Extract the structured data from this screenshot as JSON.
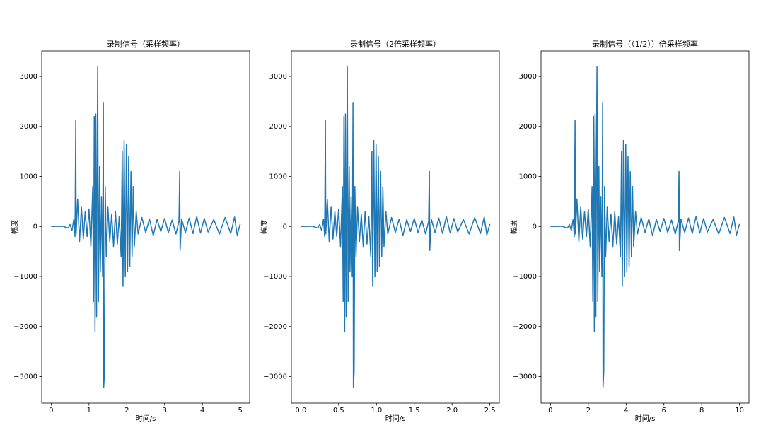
{
  "chart_data": [
    {
      "type": "line",
      "title": "录制信号（采样频率）",
      "x_label": "时间/s",
      "y_label": "幅度",
      "color": "#1f77b4",
      "xlim": [
        -0.25,
        5.25
      ],
      "ylim": [
        -3530,
        3510
      ],
      "xticks": [
        0,
        1,
        2,
        3,
        4,
        5
      ],
      "yticks": [
        {
          "value": -3000,
          "label": "−3000"
        },
        {
          "value": -2000,
          "label": "−2000"
        },
        {
          "value": -1000,
          "label": "−1000"
        },
        0,
        1000,
        2000,
        3000
      ],
      "x": [
        0,
        0.3,
        0.45,
        0.5,
        0.55,
        0.6,
        0.63,
        0.65,
        0.66,
        0.7,
        0.75,
        0.8,
        0.85,
        0.9,
        0.95,
        1.0,
        1.05,
        1.1,
        1.12,
        1.14,
        1.16,
        1.18,
        1.2,
        1.22,
        1.23,
        1.25,
        1.28,
        1.3,
        1.33,
        1.36,
        1.38,
        1.39,
        1.41,
        1.43,
        1.46,
        1.5,
        1.55,
        1.6,
        1.65,
        1.7,
        1.75,
        1.8,
        1.85,
        1.88,
        1.9,
        1.93,
        1.96,
        1.99,
        2.02,
        2.05,
        2.08,
        2.11,
        2.14,
        2.17,
        2.2,
        2.25,
        2.3,
        2.4,
        2.5,
        2.6,
        2.7,
        2.8,
        2.9,
        3.0,
        3.1,
        3.2,
        3.3,
        3.38,
        3.4,
        3.41,
        3.45,
        3.55,
        3.65,
        3.75,
        3.85,
        3.95,
        4.05,
        4.15,
        4.3,
        4.45,
        4.6,
        4.75,
        4.85,
        4.92,
        5.0
      ],
      "values": [
        0,
        5,
        -30,
        40,
        -80,
        150,
        -200,
        2120,
        -150,
        550,
        -300,
        400,
        -250,
        300,
        -200,
        350,
        -400,
        800,
        -1500,
        2200,
        -2100,
        2250,
        -1800,
        1900,
        3190,
        -1500,
        1200,
        -900,
        600,
        -1000,
        2480,
        -3210,
        -2900,
        800,
        -600,
        400,
        -300,
        250,
        -400,
        300,
        -350,
        200,
        -600,
        1500,
        -1200,
        1720,
        -1000,
        1650,
        -900,
        1400,
        -800,
        1100,
        -600,
        800,
        -400,
        300,
        -150,
        180,
        -120,
        150,
        -180,
        140,
        -100,
        160,
        -120,
        130,
        -150,
        100,
        1100,
        -480,
        150,
        -120,
        170,
        -140,
        200,
        -130,
        160,
        -110,
        140,
        -150,
        180,
        -140,
        190,
        -170,
        50
      ]
    },
    {
      "type": "line",
      "title": "录制信号（2倍采样频率）",
      "x_label": "时间/s",
      "y_label": "幅度",
      "color": "#1f77b4",
      "xlim": [
        -0.125,
        2.625
      ],
      "ylim": [
        -3530,
        3510
      ],
      "xticks": [
        {
          "value": 0,
          "label": "0.0"
        },
        0.5,
        {
          "value": 1,
          "label": "1.0"
        },
        1.5,
        {
          "value": 2,
          "label": "2.0"
        },
        2.5
      ],
      "yticks": [
        {
          "value": -3000,
          "label": "−3000"
        },
        {
          "value": -2000,
          "label": "−2000"
        },
        {
          "value": -1000,
          "label": "−1000"
        },
        0,
        1000,
        2000,
        3000
      ],
      "x": [
        0,
        0.15,
        0.225,
        0.25,
        0.275,
        0.3,
        0.315,
        0.325,
        0.33,
        0.35,
        0.375,
        0.4,
        0.425,
        0.45,
        0.475,
        0.5,
        0.525,
        0.55,
        0.56,
        0.57,
        0.58,
        0.59,
        0.6,
        0.61,
        0.615,
        0.625,
        0.64,
        0.65,
        0.665,
        0.68,
        0.69,
        0.695,
        0.705,
        0.715,
        0.73,
        0.75,
        0.775,
        0.8,
        0.825,
        0.85,
        0.875,
        0.9,
        0.925,
        0.94,
        0.95,
        0.965,
        0.98,
        0.995,
        1.01,
        1.025,
        1.04,
        1.055,
        1.07,
        1.085,
        1.1,
        1.125,
        1.15,
        1.2,
        1.25,
        1.3,
        1.35,
        1.4,
        1.45,
        1.5,
        1.55,
        1.6,
        1.65,
        1.69,
        1.7,
        1.705,
        1.725,
        1.775,
        1.825,
        1.875,
        1.925,
        1.975,
        2.025,
        2.075,
        2.15,
        2.225,
        2.3,
        2.375,
        2.425,
        2.46,
        2.5
      ],
      "values": [
        0,
        5,
        -30,
        40,
        -80,
        150,
        -200,
        2120,
        -150,
        550,
        -300,
        400,
        -250,
        300,
        -200,
        350,
        -400,
        800,
        -1500,
        2200,
        -2100,
        2250,
        -1800,
        1900,
        3190,
        -1500,
        1200,
        -900,
        600,
        -1000,
        2480,
        -3210,
        -2900,
        800,
        -600,
        400,
        -300,
        250,
        -400,
        300,
        -350,
        200,
        -600,
        1500,
        -1200,
        1720,
        -1000,
        1650,
        -900,
        1400,
        -800,
        1100,
        -600,
        800,
        -400,
        300,
        -150,
        180,
        -120,
        150,
        -180,
        140,
        -100,
        160,
        -120,
        130,
        -150,
        100,
        1100,
        -480,
        150,
        -120,
        170,
        -140,
        200,
        -130,
        160,
        -110,
        140,
        -150,
        180,
        -140,
        190,
        -170,
        50
      ]
    },
    {
      "type": "line",
      "title": "录制信号（（1/2））倍采样频率",
      "x_label": "时间/s",
      "y_label": "幅度",
      "color": "#1f77b4",
      "xlim": [
        -0.5,
        10.5
      ],
      "ylim": [
        -3530,
        3510
      ],
      "xticks": [
        0,
        2,
        4,
        6,
        8,
        10
      ],
      "yticks": [
        {
          "value": -3000,
          "label": "−3000"
        },
        {
          "value": -2000,
          "label": "−2000"
        },
        {
          "value": -1000,
          "label": "−1000"
        },
        0,
        1000,
        2000,
        3000
      ],
      "x": [
        0,
        0.6,
        0.9,
        1,
        1.1,
        1.2,
        1.26,
        1.3,
        1.32,
        1.4,
        1.5,
        1.6,
        1.7,
        1.8,
        1.9,
        2,
        2.1,
        2.2,
        2.24,
        2.28,
        2.32,
        2.36,
        2.4,
        2.44,
        2.46,
        2.5,
        2.56,
        2.6,
        2.66,
        2.72,
        2.76,
        2.78,
        2.82,
        2.86,
        2.92,
        3,
        3.1,
        3.2,
        3.3,
        3.4,
        3.5,
        3.6,
        3.7,
        3.76,
        3.8,
        3.86,
        3.92,
        3.98,
        4.04,
        4.1,
        4.16,
        4.22,
        4.28,
        4.34,
        4.4,
        4.5,
        4.6,
        4.8,
        5,
        5.2,
        5.4,
        5.6,
        5.8,
        6,
        6.2,
        6.4,
        6.6,
        6.76,
        6.8,
        6.82,
        6.9,
        7.1,
        7.3,
        7.5,
        7.7,
        7.9,
        8.1,
        8.3,
        8.6,
        8.9,
        9.2,
        9.5,
        9.7,
        9.84,
        10
      ],
      "values": [
        0,
        5,
        -30,
        40,
        -80,
        150,
        -200,
        2120,
        -150,
        550,
        -300,
        400,
        -250,
        300,
        -200,
        350,
        -400,
        800,
        -1500,
        2200,
        -2100,
        2250,
        -1800,
        1900,
        3190,
        -1500,
        1200,
        -900,
        600,
        -1000,
        2480,
        -3210,
        -2900,
        800,
        -600,
        400,
        -300,
        250,
        -400,
        300,
        -350,
        200,
        -600,
        1500,
        -1200,
        1720,
        -1000,
        1650,
        -900,
        1400,
        -800,
        1100,
        -600,
        800,
        -400,
        300,
        -150,
        180,
        -120,
        150,
        -180,
        140,
        -100,
        160,
        -120,
        130,
        -150,
        100,
        1100,
        -480,
        150,
        -120,
        170,
        -140,
        200,
        -130,
        160,
        -110,
        140,
        -150,
        180,
        -140,
        190,
        -170,
        50
      ]
    }
  ]
}
